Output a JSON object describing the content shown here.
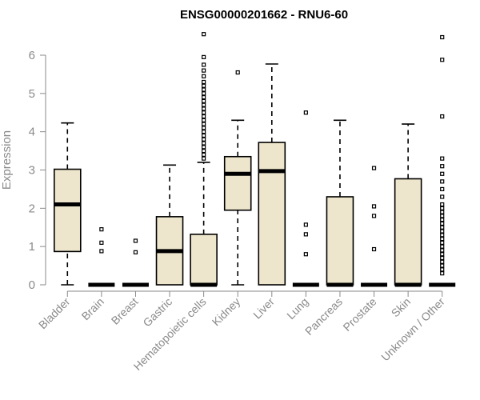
{
  "chart_data": {
    "type": "box",
    "title": "ENSG00000201662 - RNU6-60",
    "ylabel": "Expression",
    "xlabel": "",
    "ylim": [
      0,
      6.6
    ],
    "yticks": [
      0,
      1,
      2,
      3,
      4,
      5,
      6
    ],
    "grid": false,
    "box_fill": "#ede6cc",
    "categories": [
      "Bladder",
      "Brain",
      "Breast",
      "Gastric",
      "Hematopoietic cells",
      "Kidney",
      "Liver",
      "Lung",
      "Pancreas",
      "Prostate",
      "Skin",
      "Unknown / Other"
    ],
    "boxes": [
      {
        "category": "Bladder",
        "min": 0,
        "q1": 0.87,
        "median": 2.1,
        "q3": 3.02,
        "max": 4.23,
        "outliers": []
      },
      {
        "category": "Brain",
        "min": 0,
        "q1": 0,
        "median": 0,
        "q3": 0,
        "max": 0,
        "outliers": [
          0.88,
          1.1,
          1.45
        ]
      },
      {
        "category": "Breast",
        "min": 0,
        "q1": 0,
        "median": 0,
        "q3": 0,
        "max": 0,
        "outliers": [
          0.85,
          1.15
        ]
      },
      {
        "category": "Gastric",
        "min": 0,
        "q1": 0,
        "median": 0.88,
        "q3": 1.78,
        "max": 3.13,
        "outliers": []
      },
      {
        "category": "Hematopoietic cells",
        "min": 0,
        "q1": 0,
        "median": 0,
        "q3": 1.32,
        "max": 3.2,
        "outliers": [
          3.3,
          3.4,
          3.5,
          3.6,
          3.7,
          3.8,
          3.9,
          4.0,
          4.1,
          4.2,
          4.3,
          4.4,
          4.5,
          4.6,
          4.7,
          4.8,
          4.9,
          5.0,
          5.1,
          5.2,
          5.3,
          5.45,
          5.6,
          5.75,
          5.95,
          6.55
        ]
      },
      {
        "category": "Kidney",
        "min": 0,
        "q1": 1.95,
        "median": 2.9,
        "q3": 3.35,
        "max": 4.3,
        "outliers": [
          5.55
        ]
      },
      {
        "category": "Liver",
        "min": 0,
        "q1": 0,
        "median": 2.97,
        "q3": 3.72,
        "max": 5.77,
        "outliers": []
      },
      {
        "category": "Lung",
        "min": 0,
        "q1": 0,
        "median": 0,
        "q3": 0,
        "max": 0,
        "outliers": [
          0.8,
          1.32,
          1.57,
          4.5
        ]
      },
      {
        "category": "Pancreas",
        "min": 0,
        "q1": 0,
        "median": 0,
        "q3": 2.3,
        "max": 4.3,
        "outliers": []
      },
      {
        "category": "Prostate",
        "min": 0,
        "q1": 0,
        "median": 0,
        "q3": 0,
        "max": 0,
        "outliers": [
          0.93,
          1.8,
          2.05,
          3.05
        ]
      },
      {
        "category": "Skin",
        "min": 0,
        "q1": 0,
        "median": 0,
        "q3": 2.77,
        "max": 4.2,
        "outliers": []
      },
      {
        "category": "Unknown / Other",
        "min": 0,
        "q1": 0,
        "median": 0,
        "q3": 0,
        "max": 0,
        "outliers": [
          0.3,
          0.4,
          0.5,
          0.6,
          0.7,
          0.8,
          0.9,
          1.0,
          1.1,
          1.2,
          1.3,
          1.4,
          1.5,
          1.6,
          1.7,
          1.8,
          1.9,
          2.0,
          2.1,
          2.3,
          2.5,
          2.7,
          2.9,
          3.1,
          3.3,
          4.4,
          5.88,
          6.47
        ]
      }
    ]
  }
}
